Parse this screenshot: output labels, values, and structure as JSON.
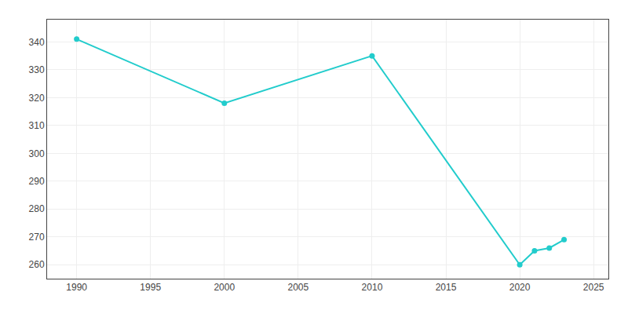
{
  "chart_data": {
    "type": "line",
    "x": [
      1990,
      2000,
      2010,
      2020,
      2021,
      2022,
      2023
    ],
    "values": [
      341,
      318,
      335,
      260,
      265,
      266,
      269
    ],
    "color": "#22CCCC",
    "marker": "circle",
    "xlim": [
      1988,
      2026
    ],
    "ylim": [
      255,
      348
    ],
    "xticks": [
      1990,
      1995,
      2000,
      2005,
      2010,
      2015,
      2020,
      2025
    ],
    "yticks": [
      260,
      270,
      280,
      290,
      300,
      310,
      320,
      330,
      340
    ],
    "grid": true
  }
}
